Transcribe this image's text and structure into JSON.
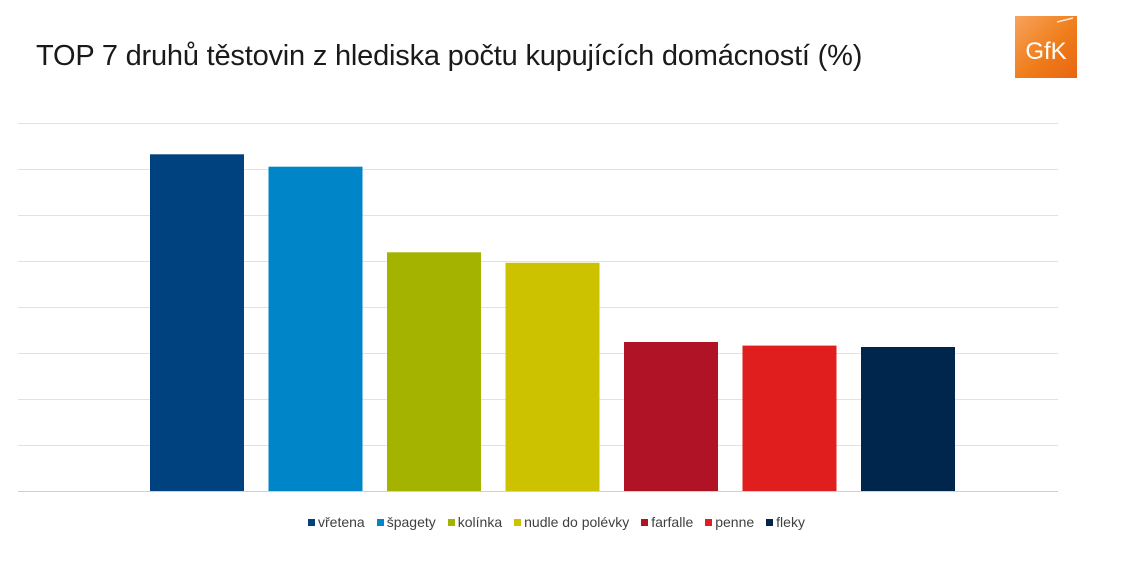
{
  "title": "TOP 7 druhů těstovin z hlediska počtu kupujících domácností (%)",
  "logo": {
    "text": "GfK",
    "colors": [
      "#f7a35c",
      "#e86512"
    ]
  },
  "chart_data": {
    "type": "bar",
    "title": "TOP 7 druhů těstovin z hlediska počtu kupujících domácností (%)",
    "categories": [
      "vřetena",
      "špagety",
      "kolínka",
      "nudle do polévky",
      "farfalle",
      "penne",
      "fleky"
    ],
    "values": [
      73.2,
      70.5,
      51.9,
      49.6,
      32.4,
      31.6,
      31.3
    ],
    "colors": [
      "#00427f",
      "#0086c8",
      "#a3b300",
      "#cdc200",
      "#b01325",
      "#e01e1e",
      "#00264d"
    ],
    "ylim": [
      0,
      80
    ],
    "y_gridlines": [
      0,
      10,
      20,
      30,
      40,
      50,
      60,
      70,
      80
    ],
    "y_tick_labels_shown": false,
    "grid": true,
    "legend_position": "bottom",
    "xlabel": "",
    "ylabel": ""
  }
}
